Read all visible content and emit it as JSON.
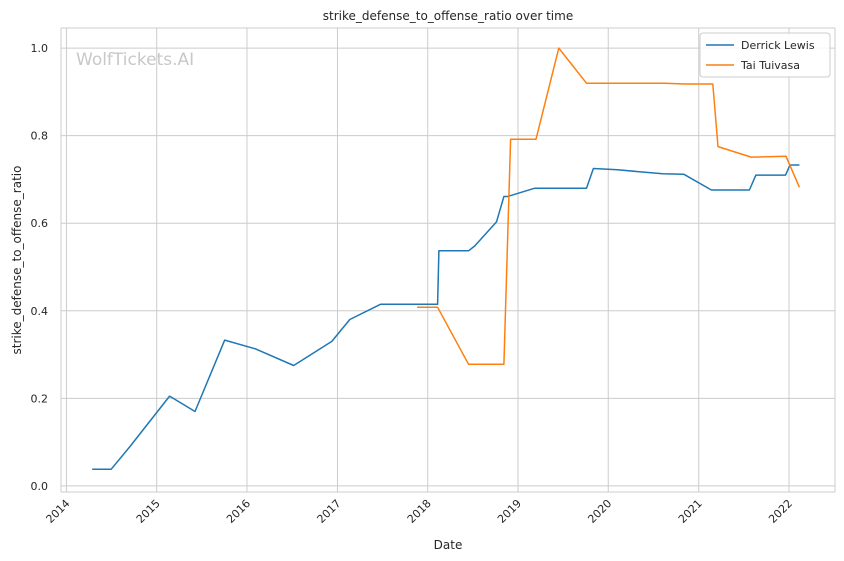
{
  "chart_data": {
    "type": "line",
    "title": "strike_defense_to_offense_ratio over time",
    "xlabel": "Date",
    "ylabel": "strike_defense_to_offense_ratio",
    "watermark": "WolfTickets.AI",
    "x_ticks": [
      "2014",
      "2015",
      "2016",
      "2017",
      "2018",
      "2019",
      "2020",
      "2021",
      "2022"
    ],
    "y_ticks": [
      "0.0",
      "0.2",
      "0.4",
      "0.6",
      "0.8",
      "1.0"
    ],
    "xlim": [
      "2013-12-10",
      "2022-07-06"
    ],
    "ylim": [
      -0.014,
      1.046
    ],
    "grid": true,
    "legend_position": "top-right",
    "colors": {
      "Derrick Lewis": "#1f77b4",
      "Tai Tuivasa": "#ff7f0e",
      "grid": "#cccccc",
      "spine": "#cccccc"
    },
    "series": [
      {
        "name": "Derrick Lewis",
        "points": [
          [
            "2014-04-15",
            0.038
          ],
          [
            "2014-07-01",
            0.038
          ],
          [
            "2014-09-15",
            0.09
          ],
          [
            "2015-02-22",
            0.205
          ],
          [
            "2015-06-05",
            0.17
          ],
          [
            "2015-10-03",
            0.333
          ],
          [
            "2016-02-05",
            0.313
          ],
          [
            "2016-07-08",
            0.275
          ],
          [
            "2016-12-09",
            0.33
          ],
          [
            "2017-02-20",
            0.38
          ],
          [
            "2017-06-25",
            0.415
          ],
          [
            "2018-02-10",
            0.415
          ],
          [
            "2018-02-15",
            0.537
          ],
          [
            "2018-06-15",
            0.537
          ],
          [
            "2018-07-10",
            0.548
          ],
          [
            "2018-10-06",
            0.603
          ],
          [
            "2018-11-05",
            0.661
          ],
          [
            "2018-11-20",
            0.661
          ],
          [
            "2019-03-10",
            0.68
          ],
          [
            "2019-10-05",
            0.68
          ],
          [
            "2019-11-02",
            0.725
          ],
          [
            "2020-02-08",
            0.722
          ],
          [
            "2020-08-08",
            0.713
          ],
          [
            "2020-11-01",
            0.712
          ],
          [
            "2021-02-21",
            0.676
          ],
          [
            "2021-07-25",
            0.676
          ],
          [
            "2021-08-20",
            0.71
          ],
          [
            "2021-12-18",
            0.71
          ],
          [
            "2022-01-05",
            0.733
          ],
          [
            "2022-02-12",
            0.733
          ]
        ]
      },
      {
        "name": "Tai Tuivasa",
        "points": [
          [
            "2017-11-19",
            0.408
          ],
          [
            "2018-02-10",
            0.408
          ],
          [
            "2018-06-15",
            0.278
          ],
          [
            "2018-11-05",
            0.278
          ],
          [
            "2018-12-02",
            0.792
          ],
          [
            "2019-03-15",
            0.792
          ],
          [
            "2019-06-15",
            1.0
          ],
          [
            "2019-10-05",
            0.92
          ],
          [
            "2020-08-15",
            0.92
          ],
          [
            "2020-11-05",
            0.918
          ],
          [
            "2021-02-27",
            0.918
          ],
          [
            "2021-03-20",
            0.775
          ],
          [
            "2021-08-01",
            0.751
          ],
          [
            "2021-12-20",
            0.753
          ],
          [
            "2022-02-12",
            0.682
          ]
        ]
      }
    ]
  }
}
